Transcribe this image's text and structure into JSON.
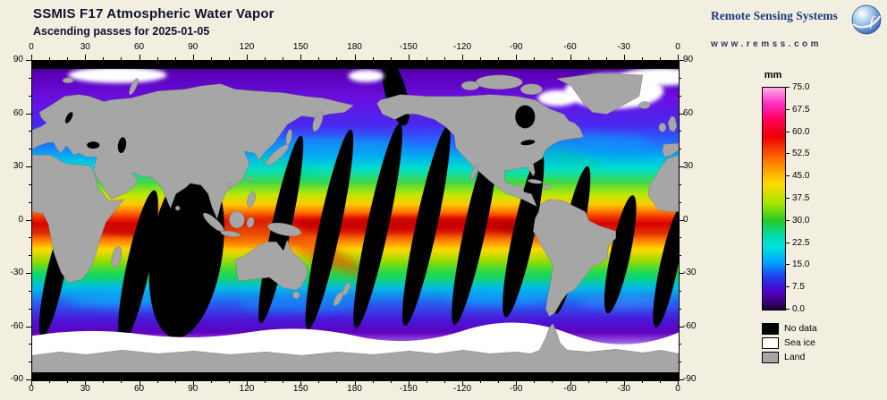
{
  "page": {
    "background": "#F2EFE1"
  },
  "header": {
    "title": "SSMIS F17 Atmospheric Water Vapor",
    "subtitle": "Ascending passes for 2025-01-05"
  },
  "brand": {
    "name": "Remote Sensing Systems",
    "url": "www.remss.com"
  },
  "axes": {
    "lon_labels": [
      "0",
      "30",
      "60",
      "90",
      "120",
      "150",
      "180",
      "-150",
      "-120",
      "-90",
      "-60",
      "-30",
      "0"
    ],
    "lat_labels": [
      "90",
      "60",
      "30",
      "0",
      "-30",
      "-60",
      "-90"
    ]
  },
  "colorbar": {
    "unit": "mm",
    "min": 0.0,
    "max": 75.0,
    "tick_labels": [
      "75.0",
      "67.5",
      "60.0",
      "52.5",
      "45.0",
      "37.5",
      "30.0",
      "22.5",
      "15.0",
      "7.5",
      "0.0"
    ],
    "colors_top_to_bottom": [
      "#FFB0E6",
      "#FF30C8 7%",
      "#FF0060 14%",
      "#EE0000 22%",
      "#FF7700 33%",
      "#FFD900 43%",
      "#A8E800 52%",
      "#28C828 60%",
      "#00DCB4 67%",
      "#00E0E0 72%",
      "#00A0FF 79%",
      "#2040F0 85%",
      "#5000C8 92%",
      "#38006E 97%",
      "#1C0038"
    ]
  },
  "legend": [
    {
      "label": "No data",
      "color": "#000000"
    },
    {
      "label": "Sea ice",
      "color": "#FFFFFF"
    },
    {
      "label": "Land",
      "color": "#A6A6A6"
    }
  ]
}
